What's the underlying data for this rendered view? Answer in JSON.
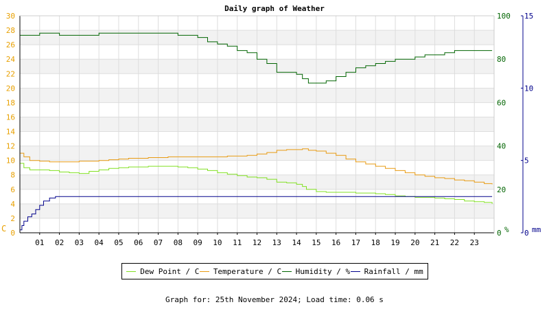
{
  "header": {
    "title": "Daily graph of Weather"
  },
  "footer": {
    "text": "Graph for: 25th November 2024; Load time: 0.06 s"
  },
  "colors": {
    "temp_axis": "#e8a000",
    "humidity_axis": "#006400",
    "rain_axis": "#00008b",
    "dewpoint": "#80e020",
    "temperature": "#e89a10",
    "humidity": "#006400",
    "rainfall": "#00008b"
  },
  "chart_data": {
    "type": "line",
    "title": "Daily graph of Weather",
    "x_ticks": [
      "01",
      "02",
      "03",
      "04",
      "05",
      "06",
      "07",
      "08",
      "09",
      "10",
      "11",
      "12",
      "13",
      "14",
      "15",
      "16",
      "17",
      "18",
      "19",
      "20",
      "21",
      "22",
      "23"
    ],
    "xlim": [
      0,
      24
    ],
    "axes": {
      "left": {
        "unit": "C",
        "lim": [
          0,
          30
        ],
        "ticks": [
          "0",
          "2",
          "4",
          "6",
          "8",
          "10",
          "12",
          "14",
          "16",
          "18",
          "20",
          "22",
          "24",
          "26",
          "28",
          "30"
        ]
      },
      "right_humidity": {
        "unit": "%",
        "lim": [
          0,
          100
        ],
        "ticks": [
          "0",
          "20",
          "40",
          "60",
          "80",
          "100"
        ]
      },
      "right_rain": {
        "unit": "mm",
        "lim": [
          0,
          15
        ],
        "ticks": [
          "0",
          "5",
          "10",
          "15"
        ]
      }
    },
    "grid": true,
    "legend_position": "bottom",
    "series": [
      {
        "name": "Dew Point / C",
        "axis": "left",
        "color_key": "dewpoint",
        "x": [
          0,
          0.2,
          0.5,
          1,
          1.5,
          2,
          2.5,
          3,
          3.5,
          4,
          4.5,
          5,
          5.5,
          6,
          6.5,
          7,
          7.5,
          8,
          8.5,
          9,
          9.5,
          10,
          10.5,
          11,
          11.5,
          12,
          12.5,
          13,
          13.5,
          14,
          14.3,
          14.5,
          15,
          15.5,
          16,
          16.5,
          17,
          17.5,
          18,
          18.5,
          19,
          19.5,
          20,
          20.5,
          21,
          21.5,
          22,
          22.5,
          23,
          23.5,
          23.9
        ],
        "y": [
          9.6,
          9.0,
          8.7,
          8.7,
          8.6,
          8.4,
          8.3,
          8.2,
          8.5,
          8.7,
          8.9,
          9.0,
          9.1,
          9.1,
          9.2,
          9.2,
          9.2,
          9.1,
          9.0,
          8.8,
          8.6,
          8.3,
          8.1,
          7.9,
          7.7,
          7.6,
          7.4,
          7.0,
          6.9,
          6.7,
          6.4,
          6.0,
          5.7,
          5.6,
          5.6,
          5.6,
          5.5,
          5.5,
          5.4,
          5.3,
          5.1,
          5.0,
          4.9,
          4.9,
          4.8,
          4.7,
          4.6,
          4.4,
          4.3,
          4.2,
          4.0
        ]
      },
      {
        "name": "Temperature / C",
        "axis": "left",
        "color_key": "temperature",
        "x": [
          0,
          0.2,
          0.5,
          1,
          1.5,
          2,
          2.5,
          3,
          3.5,
          4,
          4.5,
          5,
          5.5,
          6,
          6.5,
          7,
          7.5,
          8,
          8.5,
          9,
          9.5,
          10,
          10.5,
          11,
          11.5,
          12,
          12.5,
          13,
          13.5,
          14,
          14.3,
          14.6,
          15,
          15.5,
          16,
          16.5,
          17,
          17.5,
          18,
          18.5,
          19,
          19.5,
          20,
          20.5,
          21,
          21.5,
          22,
          22.5,
          23,
          23.5,
          23.9
        ],
        "y": [
          11.0,
          10.5,
          10.0,
          9.9,
          9.8,
          9.8,
          9.8,
          9.9,
          9.9,
          10.0,
          10.1,
          10.2,
          10.3,
          10.3,
          10.4,
          10.4,
          10.5,
          10.5,
          10.5,
          10.5,
          10.5,
          10.5,
          10.6,
          10.6,
          10.7,
          10.9,
          11.1,
          11.4,
          11.5,
          11.5,
          11.6,
          11.4,
          11.3,
          11.0,
          10.7,
          10.2,
          9.8,
          9.5,
          9.2,
          8.9,
          8.6,
          8.3,
          8.0,
          7.8,
          7.6,
          7.5,
          7.3,
          7.2,
          7.0,
          6.8,
          6.7
        ]
      },
      {
        "name": "Humidity / %",
        "axis": "right_humidity",
        "color_key": "humidity",
        "x": [
          0,
          0.5,
          1,
          1.5,
          2,
          2.5,
          3,
          3.5,
          4,
          4.5,
          5,
          5.5,
          6,
          6.5,
          7,
          7.5,
          8,
          8.5,
          9,
          9.5,
          10,
          10.5,
          11,
          11.5,
          12,
          12.5,
          13,
          13.5,
          14,
          14.3,
          14.6,
          15,
          15.5,
          16,
          16.5,
          17,
          17.5,
          18,
          18.5,
          19,
          19.5,
          20,
          20.5,
          21,
          21.5,
          22,
          22.5,
          23,
          23.5,
          23.9
        ],
        "y": [
          91,
          91,
          92,
          92,
          91,
          91,
          91,
          91,
          92,
          92,
          92,
          92,
          92,
          92,
          92,
          92,
          91,
          91,
          90,
          88,
          87,
          86,
          84,
          83,
          80,
          78,
          74,
          74,
          73,
          71,
          69,
          69,
          70,
          72,
          74,
          76,
          77,
          78,
          79,
          80,
          80,
          81,
          82,
          82,
          83,
          84,
          84,
          84,
          84,
          84
        ]
      },
      {
        "name": "Rainfall / mm",
        "axis": "right_rain",
        "color_key": "rainfall",
        "x": [
          0,
          0.1,
          0.2,
          0.4,
          0.6,
          0.8,
          1.0,
          1.2,
          1.5,
          1.8,
          2.0,
          2.2,
          2.5,
          5,
          10,
          15,
          20,
          23.9
        ],
        "y": [
          0.2,
          0.5,
          0.8,
          1.1,
          1.3,
          1.6,
          1.9,
          2.2,
          2.4,
          2.5,
          2.5,
          2.5,
          2.5,
          2.5,
          2.5,
          2.5,
          2.5,
          2.5
        ]
      }
    ]
  }
}
